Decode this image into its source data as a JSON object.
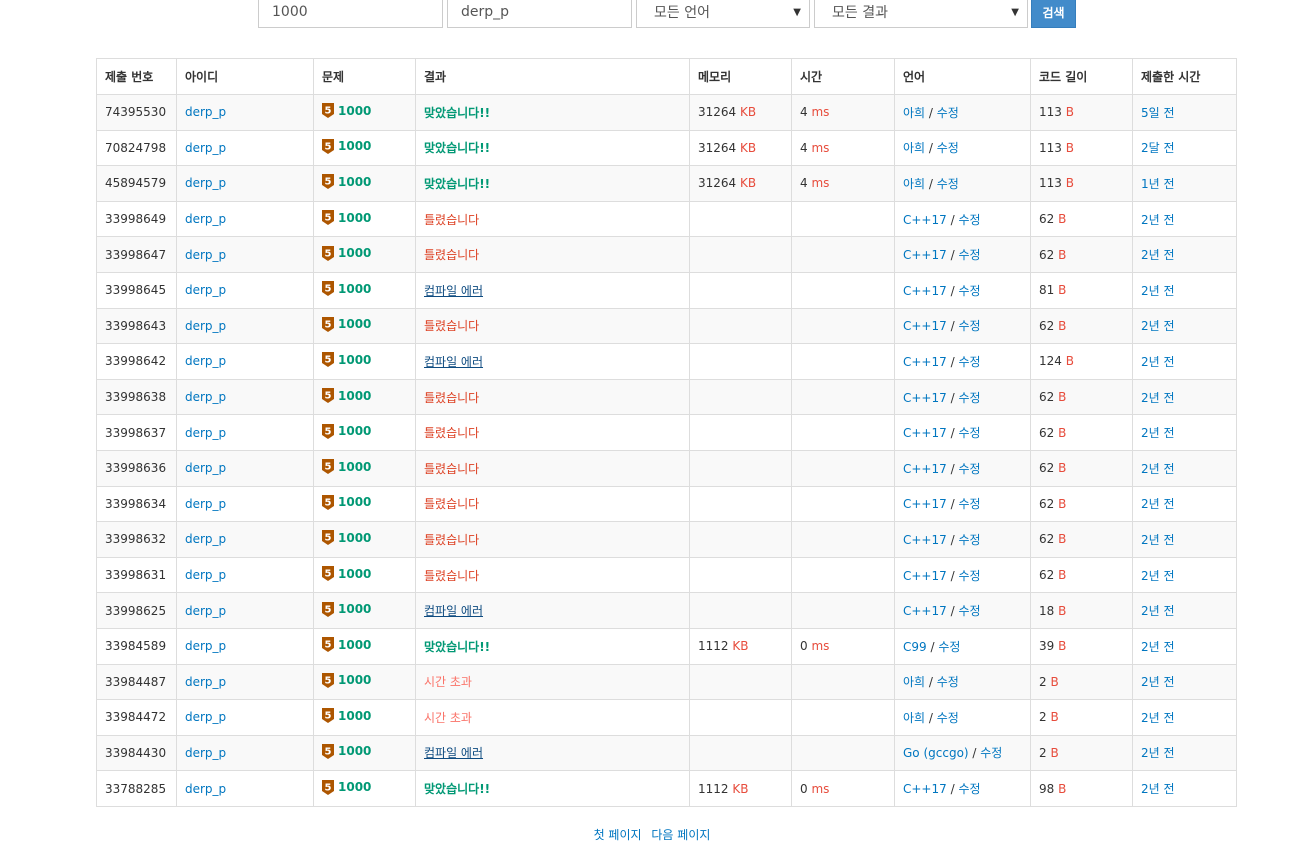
{
  "filters": {
    "problem_id": "1000",
    "user_id": "derp_p",
    "language": "모든 언어",
    "result": "모든 결과",
    "search_label": "검색"
  },
  "columns": [
    "제출 번호",
    "아이디",
    "문제",
    "결과",
    "메모리",
    "시간",
    "언어",
    "코드 길이",
    "제출한 시간"
  ],
  "rows": [
    {
      "id": "74395530",
      "user": "derp_p",
      "tier": "5",
      "problem": "1000",
      "result": "맞았습니다!!",
      "result_type": "ac",
      "memory": "31264",
      "memory_unit": "KB",
      "time": "4",
      "time_unit": "ms",
      "language": "아희",
      "edit": "수정",
      "length": "113",
      "length_unit": "B",
      "submitted": "5일 전"
    },
    {
      "id": "70824798",
      "user": "derp_p",
      "tier": "5",
      "problem": "1000",
      "result": "맞았습니다!!",
      "result_type": "ac",
      "memory": "31264",
      "memory_unit": "KB",
      "time": "4",
      "time_unit": "ms",
      "language": "아희",
      "edit": "수정",
      "length": "113",
      "length_unit": "B",
      "submitted": "2달 전"
    },
    {
      "id": "45894579",
      "user": "derp_p",
      "tier": "5",
      "problem": "1000",
      "result": "맞았습니다!!",
      "result_type": "ac",
      "memory": "31264",
      "memory_unit": "KB",
      "time": "4",
      "time_unit": "ms",
      "language": "아희",
      "edit": "수정",
      "length": "113",
      "length_unit": "B",
      "submitted": "1년 전"
    },
    {
      "id": "33998649",
      "user": "derp_p",
      "tier": "5",
      "problem": "1000",
      "result": "틀렸습니다",
      "result_type": "wa",
      "memory": "",
      "memory_unit": "",
      "time": "",
      "time_unit": "",
      "language": "C++17",
      "edit": "수정",
      "length": "62",
      "length_unit": "B",
      "submitted": "2년 전"
    },
    {
      "id": "33998647",
      "user": "derp_p",
      "tier": "5",
      "problem": "1000",
      "result": "틀렸습니다",
      "result_type": "wa",
      "memory": "",
      "memory_unit": "",
      "time": "",
      "time_unit": "",
      "language": "C++17",
      "edit": "수정",
      "length": "62",
      "length_unit": "B",
      "submitted": "2년 전"
    },
    {
      "id": "33998645",
      "user": "derp_p",
      "tier": "5",
      "problem": "1000",
      "result": "컴파일 에러",
      "result_type": "ce",
      "memory": "",
      "memory_unit": "",
      "time": "",
      "time_unit": "",
      "language": "C++17",
      "edit": "수정",
      "length": "81",
      "length_unit": "B",
      "submitted": "2년 전"
    },
    {
      "id": "33998643",
      "user": "derp_p",
      "tier": "5",
      "problem": "1000",
      "result": "틀렸습니다",
      "result_type": "wa",
      "memory": "",
      "memory_unit": "",
      "time": "",
      "time_unit": "",
      "language": "C++17",
      "edit": "수정",
      "length": "62",
      "length_unit": "B",
      "submitted": "2년 전"
    },
    {
      "id": "33998642",
      "user": "derp_p",
      "tier": "5",
      "problem": "1000",
      "result": "컴파일 에러",
      "result_type": "ce",
      "memory": "",
      "memory_unit": "",
      "time": "",
      "time_unit": "",
      "language": "C++17",
      "edit": "수정",
      "length": "124",
      "length_unit": "B",
      "submitted": "2년 전"
    },
    {
      "id": "33998638",
      "user": "derp_p",
      "tier": "5",
      "problem": "1000",
      "result": "틀렸습니다",
      "result_type": "wa",
      "memory": "",
      "memory_unit": "",
      "time": "",
      "time_unit": "",
      "language": "C++17",
      "edit": "수정",
      "length": "62",
      "length_unit": "B",
      "submitted": "2년 전"
    },
    {
      "id": "33998637",
      "user": "derp_p",
      "tier": "5",
      "problem": "1000",
      "result": "틀렸습니다",
      "result_type": "wa",
      "memory": "",
      "memory_unit": "",
      "time": "",
      "time_unit": "",
      "language": "C++17",
      "edit": "수정",
      "length": "62",
      "length_unit": "B",
      "submitted": "2년 전"
    },
    {
      "id": "33998636",
      "user": "derp_p",
      "tier": "5",
      "problem": "1000",
      "result": "틀렸습니다",
      "result_type": "wa",
      "memory": "",
      "memory_unit": "",
      "time": "",
      "time_unit": "",
      "language": "C++17",
      "edit": "수정",
      "length": "62",
      "length_unit": "B",
      "submitted": "2년 전"
    },
    {
      "id": "33998634",
      "user": "derp_p",
      "tier": "5",
      "problem": "1000",
      "result": "틀렸습니다",
      "result_type": "wa",
      "memory": "",
      "memory_unit": "",
      "time": "",
      "time_unit": "",
      "language": "C++17",
      "edit": "수정",
      "length": "62",
      "length_unit": "B",
      "submitted": "2년 전"
    },
    {
      "id": "33998632",
      "user": "derp_p",
      "tier": "5",
      "problem": "1000",
      "result": "틀렸습니다",
      "result_type": "wa",
      "memory": "",
      "memory_unit": "",
      "time": "",
      "time_unit": "",
      "language": "C++17",
      "edit": "수정",
      "length": "62",
      "length_unit": "B",
      "submitted": "2년 전"
    },
    {
      "id": "33998631",
      "user": "derp_p",
      "tier": "5",
      "problem": "1000",
      "result": "틀렸습니다",
      "result_type": "wa",
      "memory": "",
      "memory_unit": "",
      "time": "",
      "time_unit": "",
      "language": "C++17",
      "edit": "수정",
      "length": "62",
      "length_unit": "B",
      "submitted": "2년 전"
    },
    {
      "id": "33998625",
      "user": "derp_p",
      "tier": "5",
      "problem": "1000",
      "result": "컴파일 에러",
      "result_type": "ce",
      "memory": "",
      "memory_unit": "",
      "time": "",
      "time_unit": "",
      "language": "C++17",
      "edit": "수정",
      "length": "18",
      "length_unit": "B",
      "submitted": "2년 전"
    },
    {
      "id": "33984589",
      "user": "derp_p",
      "tier": "5",
      "problem": "1000",
      "result": "맞았습니다!!",
      "result_type": "ac",
      "memory": "1112",
      "memory_unit": "KB",
      "time": "0",
      "time_unit": "ms",
      "language": "C99",
      "edit": "수정",
      "length": "39",
      "length_unit": "B",
      "submitted": "2년 전"
    },
    {
      "id": "33984487",
      "user": "derp_p",
      "tier": "5",
      "problem": "1000",
      "result": "시간 초과",
      "result_type": "tle",
      "memory": "",
      "memory_unit": "",
      "time": "",
      "time_unit": "",
      "language": "아희",
      "edit": "수정",
      "length": "2",
      "length_unit": "B",
      "submitted": "2년 전"
    },
    {
      "id": "33984472",
      "user": "derp_p",
      "tier": "5",
      "problem": "1000",
      "result": "시간 초과",
      "result_type": "tle",
      "memory": "",
      "memory_unit": "",
      "time": "",
      "time_unit": "",
      "language": "아희",
      "edit": "수정",
      "length": "2",
      "length_unit": "B",
      "submitted": "2년 전"
    },
    {
      "id": "33984430",
      "user": "derp_p",
      "tier": "5",
      "problem": "1000",
      "result": "컴파일 에러",
      "result_type": "ce",
      "memory": "",
      "memory_unit": "",
      "time": "",
      "time_unit": "",
      "language": "Go (gccgo)",
      "edit": "수정",
      "length": "2",
      "length_unit": "B",
      "submitted": "2년 전"
    },
    {
      "id": "33788285",
      "user": "derp_p",
      "tier": "5",
      "problem": "1000",
      "result": "맞았습니다!!",
      "result_type": "ac",
      "memory": "1112",
      "memory_unit": "KB",
      "time": "0",
      "time_unit": "ms",
      "language": "C++17",
      "edit": "수정",
      "length": "98",
      "length_unit": "B",
      "submitted": "2년 전"
    }
  ],
  "pagination": {
    "first": "첫 페이지",
    "next": "다음 페이지"
  },
  "icons": {
    "tier": "bronze-5-tier-icon",
    "dropdown": "chevron-down-icon"
  },
  "colors": {
    "accepted": "#009874",
    "wrong": "#dd4124",
    "timeout": "#fa7268",
    "compile_error": "#0f4c81",
    "link": "#0076c0",
    "unit": "#e74c3c",
    "button": "#428bca",
    "bronze_tier": "#ad5600"
  }
}
